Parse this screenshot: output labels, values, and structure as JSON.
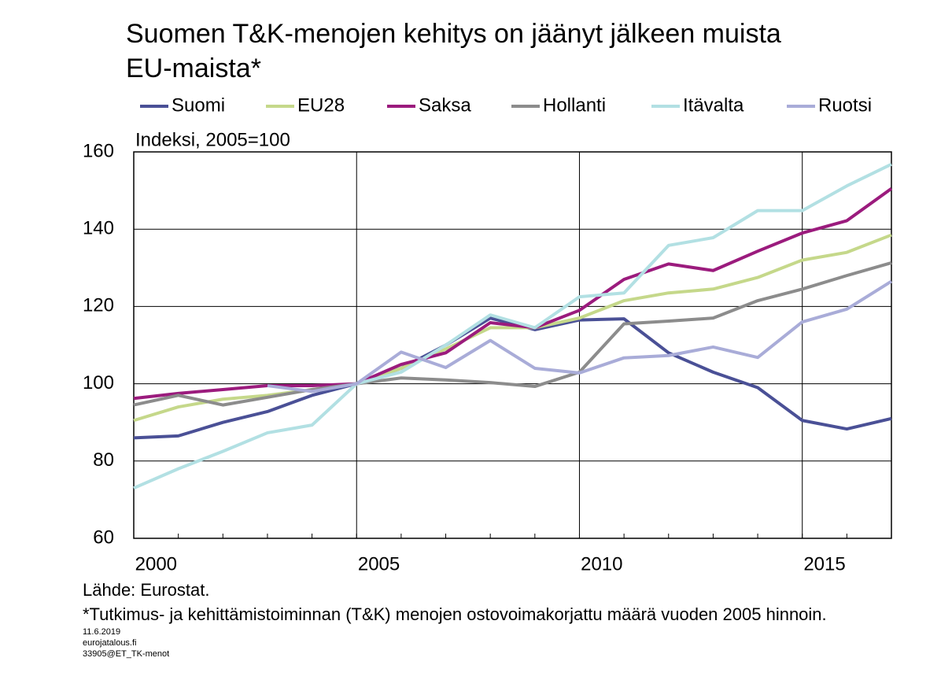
{
  "chart_data": {
    "type": "line",
    "title": [
      "Suomen T&K-menojen kehitys on jäänyt jälkeen muista",
      "EU-maista*"
    ],
    "y_label": "Indeksi, 2005=100",
    "x": [
      2000,
      2001,
      2002,
      2003,
      2004,
      2005,
      2006,
      2007,
      2008,
      2009,
      2010,
      2011,
      2012,
      2013,
      2014,
      2015,
      2016,
      2017
    ],
    "xlim": [
      2000,
      2017
    ],
    "xticks": [
      2000,
      2005,
      2010,
      2015
    ],
    "ylim": [
      60,
      160
    ],
    "yticks": [
      60,
      80,
      100,
      120,
      140,
      160
    ],
    "grid": true,
    "series": [
      {
        "name": "Suomi",
        "color": "#4a5096",
        "values": [
          86,
          86.5,
          90,
          92.8,
          97,
          100,
          104,
          110,
          117,
          114,
          116.5,
          116.8,
          108,
          103,
          99,
          90.5,
          88.3,
          91
        ]
      },
      {
        "name": "EU28",
        "color": "#c5d88a",
        "values": [
          90.5,
          94,
          96,
          97,
          98.5,
          100,
          104,
          109,
          114.5,
          114.5,
          117,
          121.5,
          123.5,
          124.5,
          127.5,
          132,
          134,
          138.5
        ]
      },
      {
        "name": "Saksa",
        "color": "#9b1b7d",
        "values": [
          96.2,
          97.5,
          98.5,
          99.5,
          99.5,
          100,
          105,
          108,
          115.8,
          114.5,
          119,
          127,
          131,
          129.3,
          134.3,
          139,
          142.2,
          150.5
        ]
      },
      {
        "name": "Hollanti",
        "color": "#8c8c8c",
        "values": [
          94.5,
          97,
          94.5,
          96.5,
          98.5,
          100,
          101.5,
          101,
          100.3,
          99.3,
          103,
          115.5,
          116.2,
          117,
          121.5,
          124.5,
          128,
          131.3
        ]
      },
      {
        "name": "Itävalta",
        "color": "#b2e0e3",
        "values": [
          73,
          78,
          82.5,
          87.3,
          89.3,
          100,
          103,
          110,
          117.8,
          114.5,
          122.5,
          123.5,
          135.8,
          137.8,
          144.8,
          144.8,
          151.2,
          156.8
        ]
      },
      {
        "name": "Ruotsi",
        "color": "#a9acd8",
        "values": [
          null,
          null,
          null,
          99.5,
          98,
          100,
          108.2,
          104.2,
          111.2,
          104,
          102.8,
          106.7,
          107.3,
          109.5,
          106.8,
          116,
          119.3,
          126.5
        ]
      }
    ],
    "source": "Lähde: Eurostat.",
    "note": "*Tutkimus- ja kehittämistoiminnan (T&K) menojen ostovoimakorjattu määrä vuoden 2005 hinnoin.",
    "footer": [
      "11.6.2019",
      "eurojatalous.fi",
      "33905@ET_TK-menot"
    ]
  }
}
